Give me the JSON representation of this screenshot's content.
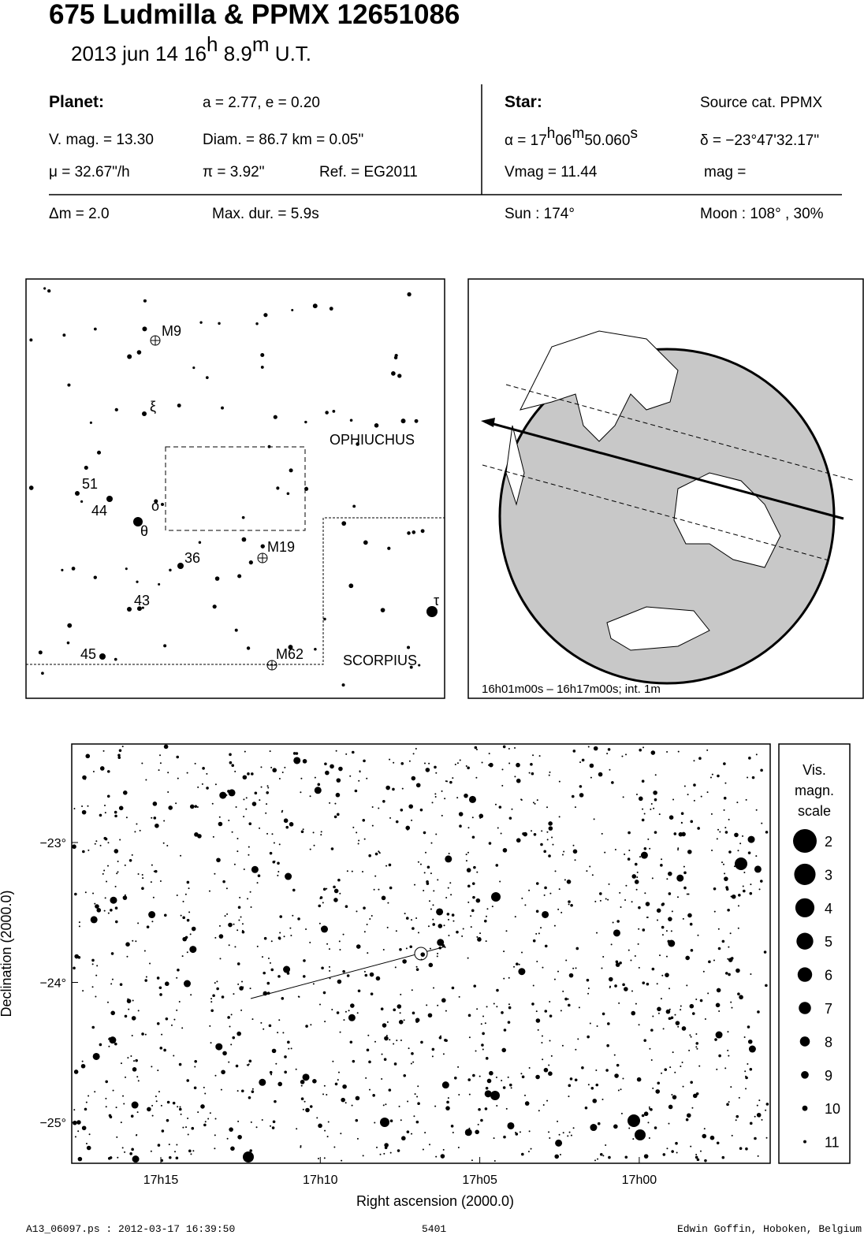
{
  "header": {
    "title": "675 Ludmilla  &  PPMX 12651086",
    "date": [
      "2013 jun 14  16",
      "h",
      " 8.9",
      "m",
      " U.T."
    ]
  },
  "info": {
    "planet_head": "Planet:",
    "orbit": "a = 2.77, e = 0.20",
    "vmag": "V. mag. = 13.30",
    "diam": "Diam. = 86.7 km = 0.05\"",
    "mu": "μ =  32.67\"/h",
    "pi": "π =  3.92\"",
    "ref": "Ref. = EG2011",
    "star_head": "Star:",
    "source": "Source cat.  PPMX",
    "alpha": [
      "α = 17",
      "h",
      "06",
      "m",
      "50.060",
      "s"
    ],
    "delta": "δ = −23°47'32.17\"",
    "star_vmag": "Vmag = 11.44",
    "mag": "mag =",
    "dm": "Δm = 2.0",
    "maxdur": "Max. dur. = 5.9s",
    "sun": "Sun : 174°",
    "moon": "Moon : 108° , 30%"
  },
  "finder": {
    "labels": [
      "M9",
      "ξ",
      "51",
      "44",
      "ο",
      "θ",
      "36",
      "M19",
      "43",
      "45",
      "M62",
      "τ"
    ],
    "constellations": [
      "OPHIUCHUS",
      "SCORPIUS"
    ]
  },
  "globe": {
    "caption": "16h01m00s – 16h17m00s; int.  1m"
  },
  "map": {
    "y_axis_label": "Declination (2000.0)",
    "x_axis_label": "Right ascension (2000.0)",
    "yticks": [
      {
        "value": -23,
        "label": "−23°"
      },
      {
        "value": -24,
        "label": "−24°"
      },
      {
        "value": -25,
        "label": "−25°"
      }
    ],
    "xticks": [
      "17h15",
      "17h10",
      "17h05",
      "17h00"
    ]
  },
  "legend": {
    "title": [
      "Vis.",
      "magn.",
      "scale"
    ],
    "magnitudes": [
      2,
      3,
      4,
      5,
      6,
      7,
      8,
      9,
      10,
      11
    ]
  },
  "footer": {
    "file": "A13_06097.ps : 2012-03-17 16:39:50",
    "number": "5401",
    "author": "Edwin Goffin, Hoboken, Belgium"
  }
}
